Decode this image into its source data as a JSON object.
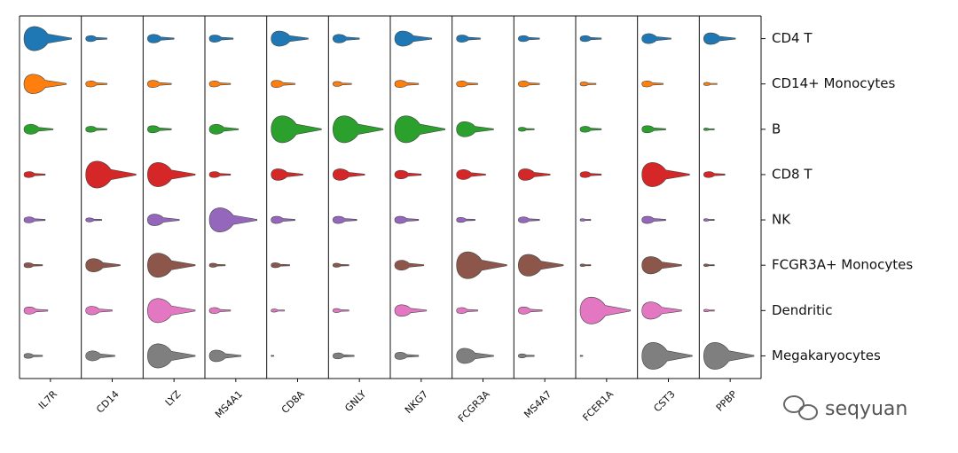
{
  "chart_data": {
    "type": "violin",
    "categories": [
      "IL7R",
      "CD14",
      "LYZ",
      "MS4A1",
      "CD8A",
      "GNLY",
      "NKG7",
      "FCGR3A",
      "MS4A7",
      "FCER1A",
      "CST3",
      "PPBP"
    ],
    "series": [
      {
        "name": "CD4 T",
        "color": "#1f77b4",
        "values": [
          0.9,
          0.4,
          0.5,
          0.45,
          0.7,
          0.5,
          0.7,
          0.45,
          0.4,
          0.4,
          0.55,
          0.6
        ]
      },
      {
        "name": "CD14+ Monocytes",
        "color": "#ff7f0e",
        "values": [
          0.8,
          0.4,
          0.45,
          0.4,
          0.45,
          0.35,
          0.45,
          0.4,
          0.4,
          0.3,
          0.4,
          0.25
        ]
      },
      {
        "name": "B",
        "color": "#2ca02c",
        "values": [
          0.55,
          0.4,
          0.45,
          0.55,
          0.95,
          0.95,
          0.95,
          0.7,
          0.3,
          0.4,
          0.45,
          0.2
        ]
      },
      {
        "name": "CD8 T",
        "color": "#d62728",
        "values": [
          0.4,
          0.95,
          0.9,
          0.4,
          0.6,
          0.6,
          0.5,
          0.55,
          0.6,
          0.4,
          0.9,
          0.4
        ]
      },
      {
        "name": "NK",
        "color": "#9467bd",
        "values": [
          0.4,
          0.3,
          0.6,
          0.9,
          0.45,
          0.45,
          0.45,
          0.35,
          0.4,
          0.2,
          0.45,
          0.2
        ]
      },
      {
        "name": "FCGR3A+ Monocytes",
        "color": "#8c564b",
        "values": [
          0.35,
          0.65,
          0.9,
          0.3,
          0.35,
          0.3,
          0.55,
          0.95,
          0.85,
          0.2,
          0.75,
          0.2
        ]
      },
      {
        "name": "Dendritic",
        "color": "#e377c2",
        "values": [
          0.45,
          0.5,
          0.9,
          0.4,
          0.25,
          0.3,
          0.6,
          0.4,
          0.45,
          0.95,
          0.75,
          0.2
        ]
      },
      {
        "name": "Megakaryocytes",
        "color": "#7f7f7f",
        "values": [
          0.35,
          0.55,
          0.9,
          0.6,
          0.05,
          0.4,
          0.45,
          0.7,
          0.3,
          0.05,
          0.95,
          0.95
        ]
      }
    ],
    "watermark": "seqyuan"
  }
}
